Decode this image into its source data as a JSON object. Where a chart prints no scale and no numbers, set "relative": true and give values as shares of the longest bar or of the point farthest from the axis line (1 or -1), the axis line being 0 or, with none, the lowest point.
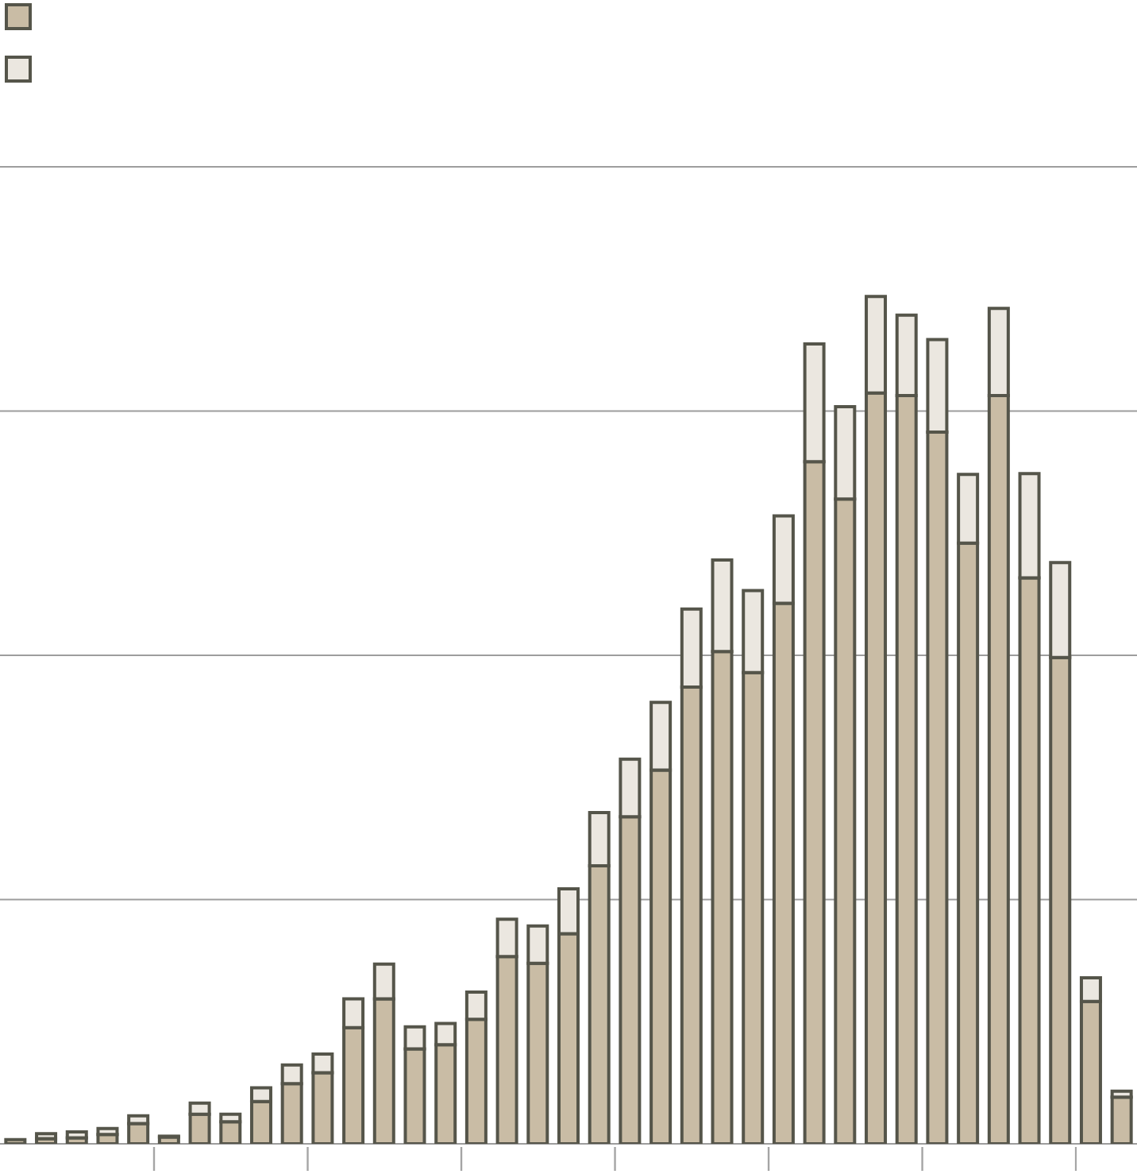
{
  "chart_data": {
    "type": "bar",
    "relative": true,
    "stacked": true,
    "categories": [
      null,
      null,
      null,
      null,
      null,
      null,
      null,
      null,
      null,
      null,
      null,
      null,
      null,
      null,
      null,
      null,
      null,
      null,
      null,
      null,
      null,
      null,
      null,
      null,
      null,
      null,
      null,
      null,
      null,
      null,
      null,
      null,
      null,
      null,
      null,
      null,
      null
    ],
    "series": [
      {
        "color": "#c9bca5",
        "values": [
          0.005,
          0.006,
          0.007,
          0.011,
          0.024,
          0.008,
          0.035,
          0.026,
          0.05,
          0.071,
          0.084,
          0.137,
          0.171,
          0.112,
          0.117,
          0.147,
          0.221,
          0.213,
          0.248,
          0.328,
          0.386,
          0.441,
          0.539,
          0.581,
          0.556,
          0.638,
          0.805,
          0.761,
          0.886,
          0.883,
          0.84,
          0.709,
          0.883,
          0.668,
          0.574,
          0.168,
          0.055
        ]
      },
      {
        "color": "#ebe7e0",
        "values": [
          0,
          0.006,
          0.007,
          0.007,
          0.009,
          0.001,
          0.013,
          0.009,
          0.016,
          0.022,
          0.022,
          0.034,
          0.041,
          0.026,
          0.025,
          0.032,
          0.044,
          0.044,
          0.053,
          0.063,
          0.068,
          0.08,
          0.092,
          0.108,
          0.097,
          0.103,
          0.139,
          0.109,
          0.114,
          0.095,
          0.109,
          0.081,
          0.103,
          0.123,
          0.112,
          0.028,
          0.007
        ]
      }
    ],
    "grid": "y"
  }
}
